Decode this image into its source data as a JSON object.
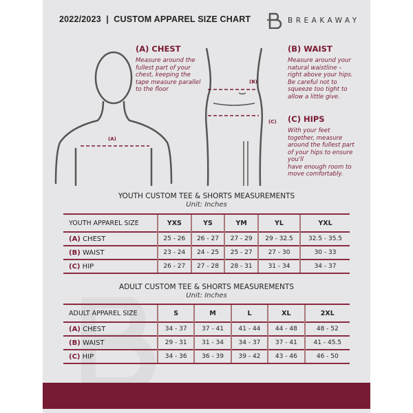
{
  "header": {
    "title": "2022/2023  |  CUSTOM APPAREL SIZE CHART",
    "brand": "BREAKAWAY",
    "logo_letter": "B"
  },
  "guide": {
    "chest": {
      "heading": "(A) CHEST",
      "text": [
        "Measure around the",
        "fullest part of your",
        "chest, keeping the",
        "tape measure parallel",
        "to the floor"
      ],
      "marker": "(A)"
    },
    "waist": {
      "heading": "(B) WAIST",
      "text": [
        "Measure around your",
        "natural waistline –",
        "right above your hips.",
        "Be careful not to",
        "squeeze too tight to",
        "allow a little give."
      ],
      "marker": "(B)"
    },
    "hips": {
      "heading": "(C) HIPS",
      "text": [
        "With your feet",
        "together, measure",
        "around the fullest part",
        "of your hips to ensure",
        "you'll",
        "have enough room to",
        "move comfortably."
      ],
      "marker": "(C)"
    }
  },
  "youth": {
    "title": "YOUTH CUSTOM TEE & SHORTS MEASUREMENTS",
    "unit": "Unit: Inches",
    "header": [
      "YOUTH APPAREL SIZE",
      "YXS",
      "YS",
      "YM",
      "YL",
      "YXL"
    ],
    "rows": [
      {
        "letter": "(A)",
        "name": "CHEST",
        "values": [
          "25 - 26",
          "26 - 27",
          "27 - 29",
          "29 - 32.5",
          "32.5 - 35.5"
        ]
      },
      {
        "letter": "(B)",
        "name": "WAIST",
        "values": [
          "23 - 24",
          "24 - 25",
          "25 - 27",
          "27 - 30",
          "30 - 33"
        ]
      },
      {
        "letter": "(C)",
        "name": "HIP",
        "values": [
          "26 - 27",
          "27 - 28",
          "28 - 31",
          "31 - 34",
          "34 - 37"
        ]
      }
    ]
  },
  "adult": {
    "title": "ADULT CUSTOM TEE & SHORTS MEASUREMENTS",
    "unit": "Unit: Inches",
    "header": [
      "ADULT APPAREL SIZE",
      "S",
      "M",
      "L",
      "XL",
      "2XL"
    ],
    "rows": [
      {
        "letter": "(A)",
        "name": "CHEST",
        "values": [
          "34 - 37",
          "37 - 41",
          "41 - 44",
          "44 - 48",
          "48 - 52"
        ]
      },
      {
        "letter": "(B)",
        "name": "WAIST",
        "values": [
          "29 - 31",
          "31 - 34",
          "34 - 37",
          "37 - 41",
          "41 - 45.5"
        ]
      },
      {
        "letter": "(C)",
        "name": "HIP",
        "values": [
          "34 - 36",
          "36 - 39",
          "39 - 42",
          "43 - 46",
          "46 - 50"
        ]
      }
    ]
  },
  "colors": {
    "accent": "#7a1a33",
    "panel": "#e6e6e8"
  }
}
